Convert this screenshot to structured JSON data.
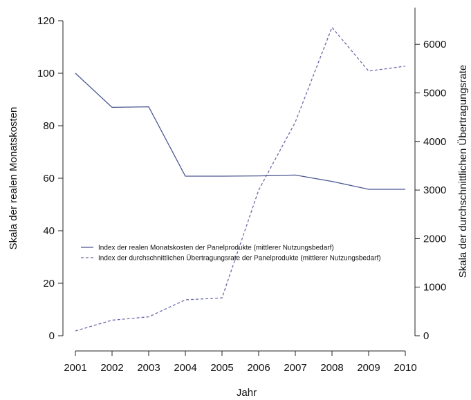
{
  "chart_data": {
    "type": "line",
    "title": "",
    "xlabel": "Jahr",
    "ylabel_left": "Skala der realen Monatskosten",
    "ylabel_right": "Skala der durchschnittlichen Übertragungsrate",
    "x": [
      2001,
      2002,
      2003,
      2004,
      2005,
      2006,
      2007,
      2008,
      2009,
      2010
    ],
    "x_tick_labels": [
      "2001",
      "2002",
      "2003",
      "2004",
      "2005",
      "2006",
      "2007",
      "2008",
      "2009",
      "2010"
    ],
    "ylim_left": [
      0,
      120
    ],
    "ylim_right": [
      0,
      6500
    ],
    "y_left_ticks": [
      0,
      20,
      40,
      60,
      80,
      100,
      120
    ],
    "y_left_tick_labels": [
      "0",
      "20",
      "40",
      "60",
      "80",
      "100",
      "120"
    ],
    "y_right_ticks": [
      0,
      1000,
      2000,
      3000,
      4000,
      5000,
      6000
    ],
    "y_right_tick_labels": [
      "0",
      "1000",
      "2000",
      "3000",
      "4000",
      "5000",
      "6000"
    ],
    "grid": false,
    "legend_position": "center-left",
    "series": [
      {
        "name": "Index der realen Monatskosten der Panelprodukte (mittlerer Nutzungsbedarf)",
        "axis": "left",
        "style": "solid",
        "color": "#4a5590",
        "values": [
          100,
          87,
          87.2,
          60.8,
          60.8,
          60.9,
          61.2,
          58.8,
          55.8,
          55.8
        ]
      },
      {
        "name": "Index der durchschnittlichen Übertragungsrate der Panelprodukte (mittlerer Nutzungsbedarf)",
        "axis": "right",
        "style": "dashed",
        "color": "#6a6aa8",
        "values": [
          100,
          320,
          390,
          740,
          780,
          3000,
          4400,
          6350,
          5450,
          5550
        ]
      }
    ]
  }
}
